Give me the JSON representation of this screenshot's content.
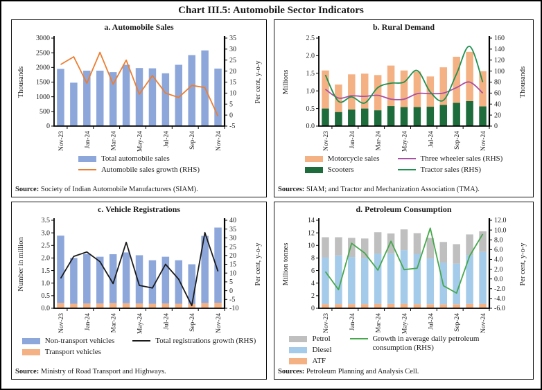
{
  "title": "Chart III.5: Automobile Sector Indicators",
  "chart_data": {
    "type": "multi-panel",
    "categories": [
      "Nov-23",
      "Dec-23",
      "Jan-24",
      "Feb-24",
      "Mar-24",
      "Apr-24",
      "May-24",
      "Jun-24",
      "Jul-24",
      "Aug-24",
      "Sep-24",
      "Oct-24",
      "Nov-24"
    ],
    "x_tick_labels": [
      "Nov-23",
      "Jan-24",
      "Mar-24",
      "May-24",
      "Jul-24",
      "Sep-24",
      "Nov-24"
    ],
    "panels": [
      {
        "id": "a",
        "title": "a. Automobile Sales",
        "type": "bar+line",
        "left_axis": {
          "title": "Thousands",
          "min": 0,
          "max": 3000,
          "ticks": [
            "0",
            "500",
            "1000",
            "1500",
            "2000",
            "2500",
            "3000"
          ]
        },
        "right_axis": {
          "title": "Per cent, y-o-y",
          "min": -5,
          "max": 35,
          "ticks": [
            "-5",
            "0",
            "5",
            "10",
            "15",
            "20",
            "25",
            "30",
            "35"
          ]
        },
        "bar_series": [
          {
            "name": "Total automobile sales",
            "color": "#8DA7DB",
            "values": [
              1950,
              1480,
              1890,
              1890,
              1840,
              2090,
              1980,
              1970,
              1800,
              2090,
              2420,
              2580,
              1960
            ]
          }
        ],
        "line_series": [
          {
            "name": "Automobile sales growth (RHS)",
            "color": "#ED7D31",
            "smooth": false,
            "values": [
              23,
              26.5,
              14.5,
              28.5,
              14,
              25,
              9.5,
              18,
              10,
              8,
              13.5,
              12.5,
              -0.5
            ]
          }
        ],
        "legend_cols": [
          [
            {
              "shape": "bar",
              "color": "#8DA7DB",
              "label": "Total automobile sales"
            },
            {
              "shape": "line",
              "color": "#ED7D31",
              "label": "Automobile sales growth (RHS)"
            }
          ]
        ],
        "source_label": "Source:",
        "source_text": " Society of Indian Automobile Manufacturers (SIAM)."
      },
      {
        "id": "b",
        "title": "b. Rural Demand",
        "type": "stacked-bar+lines",
        "left_axis": {
          "title": "Millions",
          "min": 0,
          "max": 2.5,
          "ticks": [
            "0.0",
            "0.5",
            "1.0",
            "1.5",
            "2.0",
            "2.5"
          ]
        },
        "right_axis": {
          "title": "Thousands",
          "min": 0,
          "max": 160,
          "ticks": [
            "0",
            "20",
            "40",
            "60",
            "80",
            "100",
            "120",
            "140",
            "160"
          ]
        },
        "bar_series": [
          {
            "name": "Scooters",
            "color": "#1E6B3C",
            "values": [
              0.5,
              0.4,
              0.47,
              0.5,
              0.45,
              0.57,
              0.54,
              0.54,
              0.55,
              0.6,
              0.66,
              0.71,
              0.56
            ]
          },
          {
            "name": "Motorcycle sales",
            "color": "#F4B183",
            "values": [
              1.08,
              0.78,
              1.0,
              0.99,
              1.0,
              1.15,
              1.04,
              1.01,
              0.86,
              1.07,
              1.31,
              1.4,
              1.0
            ]
          }
        ],
        "line_series": [
          {
            "name": "Three wheeler sales (RHS)",
            "color": "#A94FA4",
            "smooth": true,
            "values": [
              67,
              51,
              55,
              54,
              56,
              49,
              49,
              59,
              59,
              60,
              70,
              80,
              60
            ]
          },
          {
            "name": "Tractor sales (RHS)",
            "color": "#1E9150",
            "smooth": true,
            "values": [
              93,
              45,
              53,
              42,
              70,
              78,
              80,
              101,
              62,
              47,
              95,
              145,
              80
            ]
          }
        ],
        "legend_cols": [
          [
            {
              "shape": "bar",
              "color": "#F4B183",
              "label": "Motorcycle sales"
            },
            {
              "shape": "bar",
              "color": "#1E6B3C",
              "label": "Scooters"
            }
          ],
          [
            {
              "shape": "line",
              "color": "#A94FA4",
              "label": "Three wheeler sales (RHS)"
            },
            {
              "shape": "line",
              "color": "#1E9150",
              "label": "Tractor sales (RHS)"
            }
          ]
        ],
        "source_label": "Sources:",
        "source_text": " SIAM; and Tractor and Mechanization Association (TMA)."
      },
      {
        "id": "c",
        "title": "c. Vehicle Registrations",
        "type": "stacked-bar+line",
        "left_axis": {
          "title": "Number in million",
          "min": 0,
          "max": 3.5,
          "ticks": [
            "0.0",
            "0.5",
            "1.0",
            "1.5",
            "2.0",
            "2.5",
            "3.0",
            "3.5"
          ]
        },
        "right_axis": {
          "title": "Per cent, y-o-y",
          "min": -10,
          "max": 40,
          "ticks": [
            "-10",
            "-5",
            "0",
            "5",
            "10",
            "15",
            "20",
            "25",
            "30",
            "35",
            "40"
          ]
        },
        "bar_series": [
          {
            "name": "Transport vehicles",
            "color": "#F4B183",
            "values": [
              0.21,
              0.18,
              0.19,
              0.19,
              0.21,
              0.2,
              0.19,
              0.18,
              0.19,
              0.18,
              0.17,
              0.21,
              0.22
            ]
          },
          {
            "name": "Non-transport vehicles",
            "color": "#8DA7DB",
            "values": [
              2.68,
              1.82,
              1.97,
              1.86,
              1.94,
              2.02,
              1.92,
              1.73,
              1.86,
              1.73,
              1.58,
              2.67,
              2.99
            ]
          }
        ],
        "line_series": [
          {
            "name": "Total registrations growth (RHS)",
            "color": "#1A1A1A",
            "smooth": false,
            "values": [
              7,
              19.5,
              22,
              16.5,
              4,
              27.5,
              3,
              1.5,
              15,
              6.5,
              -8.5,
              33,
              11
            ]
          }
        ],
        "legend_cols": [
          [
            {
              "shape": "bar",
              "color": "#8DA7DB",
              "label": "Non-transport vehicles"
            },
            {
              "shape": "bar",
              "color": "#F4B183",
              "label": "Transport vehicles"
            }
          ],
          [
            {
              "shape": "line",
              "color": "#1A1A1A",
              "label": "Total registrations growth (RHS)"
            }
          ]
        ],
        "source_label": "Source:",
        "source_text": " Ministry of Road Transport and Highways."
      },
      {
        "id": "d",
        "title": "d. Petroleum Consumption",
        "type": "stacked-bar+line",
        "left_axis": {
          "title": "Million tonnes",
          "min": 0,
          "max": 14,
          "ticks": [
            "0",
            "2",
            "4",
            "6",
            "8",
            "10",
            "12",
            "14"
          ]
        },
        "right_axis": {
          "title": "Per cent, y-o-y",
          "min": -6,
          "max": 12,
          "ticks": [
            "-6.0",
            "-4.0",
            "-2.0",
            "0.0",
            "2.0",
            "4.0",
            "6.0",
            "8.0",
            "10.0",
            "12.0"
          ]
        },
        "bar_series": [
          {
            "name": "ATF",
            "color": "#F4B183",
            "values": [
              0.65,
              0.65,
              0.65,
              0.65,
              0.7,
              0.68,
              0.7,
              0.65,
              0.63,
              0.62,
              0.63,
              0.68,
              0.7
            ]
          },
          {
            "name": "Diesel",
            "color": "#A5CBEA",
            "values": [
              7.45,
              7.75,
              7.5,
              7.35,
              8.0,
              8.05,
              8.55,
              8.0,
              7.3,
              6.65,
              6.45,
              7.8,
              8.25
            ]
          },
          {
            "name": "Petrol",
            "color": "#BFBFBF",
            "values": [
              3.2,
              2.9,
              3.05,
              3.1,
              3.4,
              3.17,
              3.3,
              3.3,
              3.27,
              3.28,
              3.12,
              3.27,
              3.3
            ]
          }
        ],
        "line_series": [
          {
            "name": "Growth in average daily petroleum consumption (RHS)",
            "color": "#45A84B",
            "smooth": false,
            "values": [
              1.5,
              -2.2,
              7.3,
              5.3,
              1.8,
              7.7,
              1.9,
              2.2,
              10.4,
              -1.4,
              -2.9,
              4.7,
              9.2
            ]
          }
        ],
        "legend_cols": [
          [
            {
              "shape": "bar",
              "color": "#BFBFBF",
              "label": "Petrol"
            },
            {
              "shape": "bar",
              "color": "#A5CBEA",
              "label": "Diesel"
            },
            {
              "shape": "bar",
              "color": "#F4B183",
              "label": "ATF"
            }
          ],
          [
            {
              "shape": "line",
              "color": "#45A84B",
              "label": "Growth in average daily petroleum consumption (RHS)"
            }
          ]
        ],
        "source_label": "Sources:",
        "source_text": " Petroleum Planning and Analysis Cell."
      }
    ]
  }
}
